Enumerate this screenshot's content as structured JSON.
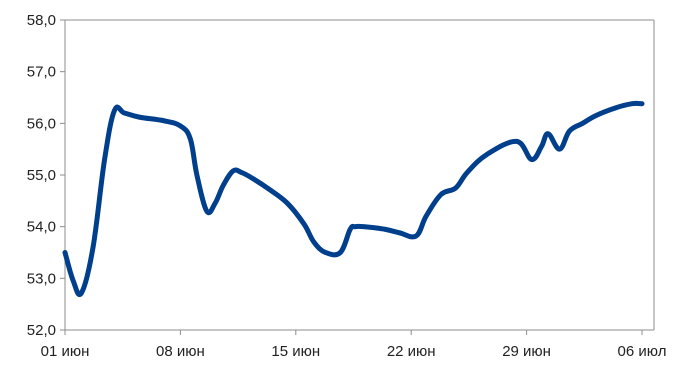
{
  "chart_data": {
    "type": "line",
    "title": "",
    "xlabel": "",
    "ylabel": "",
    "ylim": [
      52.0,
      58.0
    ],
    "y_ticks": [
      "52,0",
      "53,0",
      "54,0",
      "55,0",
      "56,0",
      "57,0",
      "58,0"
    ],
    "x_ticks": [
      "01 июн",
      "08 июн",
      "15 июн",
      "22 июн",
      "29 июн",
      "06 июл"
    ],
    "x_tick_days": [
      1,
      8,
      15,
      22,
      29,
      36
    ],
    "x_unit": "day of June (July 6 = 36)",
    "grid": false,
    "legend": "none",
    "colors": {
      "line": "#003f8c",
      "axis": "#8c8c8c"
    },
    "series": [
      {
        "name": "",
        "x": [
          1,
          1.5,
          2,
          2.7,
          3.4,
          4,
          4.6,
          5.5,
          7,
          8,
          8.6,
          9,
          9.6,
          10.1,
          10.6,
          11.2,
          11.7,
          12.3,
          13.4,
          14.5,
          15.5,
          16.1,
          16.8,
          17.7,
          18.3,
          18.6,
          19.1,
          20.4,
          21.3,
          22.3,
          22.9,
          23.8,
          24.7,
          25.4,
          26.6,
          28.4,
          29.3,
          29.9,
          30.3,
          31,
          31.6,
          32.4,
          33.2,
          34.4,
          35.4,
          36
        ],
        "y": [
          53.5,
          52.95,
          52.72,
          53.6,
          55.3,
          56.25,
          56.2,
          56.12,
          56.05,
          55.95,
          55.7,
          55.0,
          54.3,
          54.45,
          54.8,
          55.08,
          55.05,
          54.95,
          54.72,
          54.45,
          54.05,
          53.7,
          53.5,
          53.5,
          53.95,
          54.0,
          54.0,
          53.95,
          53.88,
          53.82,
          54.2,
          54.62,
          54.75,
          55.05,
          55.4,
          55.65,
          55.3,
          55.55,
          55.8,
          55.5,
          55.85,
          56.0,
          56.15,
          56.3,
          56.38,
          56.38
        ]
      }
    ]
  }
}
